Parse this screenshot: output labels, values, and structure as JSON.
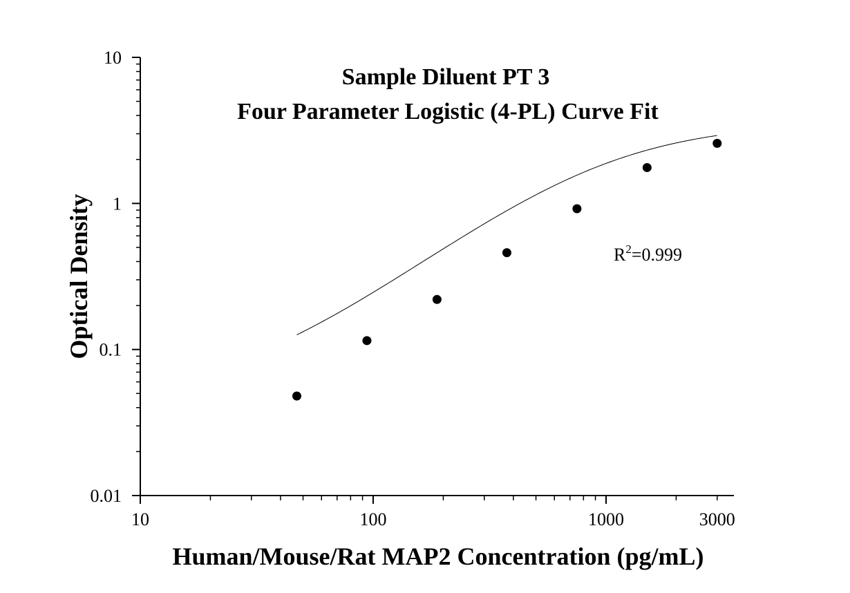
{
  "chart_data": {
    "type": "scatter",
    "title_lines": [
      "Sample Diluent PT 3",
      "Four Parameter Logistic (4-PL) Curve Fit"
    ],
    "xlabel": "Human/Mouse/Rat MAP2 Concentration (pg/mL)",
    "ylabel": "Optical Density",
    "xscale": "log",
    "yscale": "log",
    "xlim": [
      10,
      3500
    ],
    "ylim": [
      0.01,
      10
    ],
    "x_tick_labels": [
      {
        "value": 10,
        "label": "10"
      },
      {
        "value": 100,
        "label": "100"
      },
      {
        "value": 1000,
        "label": "1000"
      },
      {
        "value": 3000,
        "label": "3000"
      }
    ],
    "y_tick_labels": [
      {
        "value": 0.01,
        "label": "0.01"
      },
      {
        "value": 0.1,
        "label": "0.1"
      },
      {
        "value": 1,
        "label": "1"
      },
      {
        "value": 10,
        "label": "10"
      }
    ],
    "points": [
      {
        "x": 47,
        "y": 0.048
      },
      {
        "x": 94,
        "y": 0.115
      },
      {
        "x": 188,
        "y": 0.22
      },
      {
        "x": 375,
        "y": 0.46
      },
      {
        "x": 750,
        "y": 0.92
      },
      {
        "x": 1500,
        "y": 1.76
      },
      {
        "x": 3000,
        "y": 2.58
      }
    ],
    "curve": {
      "type": "4PL",
      "params": {
        "A": 0.045,
        "B": 1.25,
        "C": 950,
        "D": 3.6
      },
      "x_range": [
        47,
        3000
      ]
    },
    "annotation": {
      "base": "R",
      "sup": "2",
      "value": "=0.999"
    },
    "grid": false,
    "legend": "none",
    "colors": {
      "marker": "#000000",
      "line": "#000000",
      "axis": "#000000"
    }
  }
}
